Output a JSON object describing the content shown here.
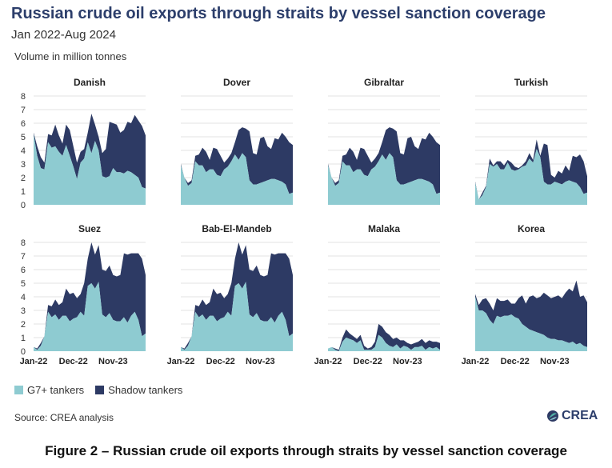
{
  "header": {
    "title": "Russian crude oil exports through straits by vessel sanction coverage",
    "subtitle": "Jan 2022-Aug 2024",
    "unit": "Volume in million tonnes"
  },
  "legend": [
    {
      "name": "G7+ tankers",
      "color": "#8ecbd1"
    },
    {
      "name": "Shadow tankers",
      "color": "#2d3a64"
    }
  ],
  "source": "Source: CREA analysis",
  "logo": "CREA",
  "caption": "Figure 2 – Russian crude oil exports through straits by vessel sanction coverage",
  "chart_data": {
    "type": "area",
    "stacked": true,
    "months": 32,
    "x_start": "Jan-22",
    "x_end": "Aug-24",
    "x_ticks": [
      {
        "index": 0,
        "label": "Jan-22"
      },
      {
        "index": 11,
        "label": "Dec-22"
      },
      {
        "index": 22,
        "label": "Nov-23"
      }
    ],
    "ylim": [
      0,
      8
    ],
    "y_ticks": [
      0,
      1,
      2,
      3,
      4,
      5,
      6,
      7,
      8
    ],
    "grid": true,
    "legend_position": "bottom-left",
    "colors": {
      "g7": "#8ecbd1",
      "shadow": "#2d3a64"
    },
    "panels": [
      {
        "name": "Danish",
        "g7": [
          5.2,
          3.6,
          2.7,
          2.6,
          4.6,
          4.2,
          4.3,
          3.9,
          3.6,
          4.4,
          3.6,
          2.8,
          1.9,
          3.1,
          3.4,
          4.6,
          3.8,
          4.7,
          4.0,
          2.1,
          2.0,
          2.1,
          2.7,
          2.4,
          2.4,
          2.3,
          2.5,
          2.4,
          2.2,
          2.0,
          1.3,
          1.2
        ],
        "total": [
          5.3,
          4.3,
          3.5,
          3.1,
          5.2,
          5.1,
          5.9,
          5.1,
          4.5,
          5.9,
          5.5,
          4.3,
          3.1,
          3.9,
          4.1,
          5.3,
          6.7,
          5.9,
          5.0,
          3.8,
          4.1,
          6.1,
          6.0,
          5.9,
          5.3,
          5.5,
          6.1,
          6.0,
          6.6,
          6.2,
          5.8,
          5.1
        ]
      },
      {
        "name": "Dover",
        "g7": [
          2.9,
          2.0,
          1.4,
          1.6,
          3.2,
          2.9,
          2.9,
          2.4,
          2.6,
          2.6,
          2.2,
          2.1,
          2.6,
          2.8,
          3.2,
          3.7,
          3.3,
          3.8,
          3.5,
          1.8,
          1.5,
          1.5,
          1.6,
          1.7,
          1.8,
          1.9,
          1.9,
          1.8,
          1.7,
          1.5,
          0.8,
          0.9
        ],
        "total": [
          3.0,
          2.0,
          1.6,
          1.8,
          3.6,
          3.7,
          4.2,
          3.9,
          3.3,
          4.2,
          4.1,
          3.6,
          3.1,
          3.4,
          3.8,
          4.6,
          5.5,
          5.7,
          5.6,
          5.4,
          3.8,
          3.7,
          4.9,
          5.0,
          4.3,
          4.1,
          4.9,
          4.8,
          5.3,
          5.0,
          4.6,
          4.4
        ]
      },
      {
        "name": "Gibraltar",
        "g7": [
          2.9,
          2.0,
          1.4,
          1.6,
          3.2,
          2.9,
          2.9,
          2.4,
          2.6,
          2.6,
          2.2,
          2.1,
          2.6,
          2.8,
          3.2,
          3.7,
          3.3,
          3.8,
          3.5,
          1.8,
          1.5,
          1.5,
          1.6,
          1.7,
          1.8,
          1.9,
          1.9,
          1.8,
          1.7,
          1.5,
          0.8,
          0.9
        ],
        "total": [
          3.0,
          2.0,
          1.6,
          1.8,
          3.6,
          3.7,
          4.2,
          3.9,
          3.3,
          4.2,
          4.1,
          3.6,
          3.1,
          3.4,
          3.8,
          4.6,
          5.5,
          5.7,
          5.6,
          5.4,
          3.8,
          3.7,
          4.9,
          5.0,
          4.3,
          4.1,
          4.9,
          4.8,
          5.3,
          5.0,
          4.6,
          4.4
        ]
      },
      {
        "name": "Turkish",
        "g7": [
          1.6,
          0.4,
          0.7,
          1.3,
          3.0,
          2.8,
          3.0,
          2.6,
          2.6,
          3.1,
          2.6,
          2.5,
          2.6,
          2.8,
          2.9,
          3.4,
          3.1,
          4.1,
          3.5,
          1.7,
          1.5,
          1.5,
          1.7,
          1.6,
          1.5,
          1.7,
          1.8,
          1.7,
          1.6,
          1.3,
          0.8,
          0.9
        ],
        "total": [
          1.7,
          0.4,
          0.9,
          1.4,
          3.4,
          2.9,
          3.2,
          3.2,
          2.9,
          3.3,
          3.1,
          2.8,
          2.7,
          2.9,
          3.2,
          3.8,
          3.3,
          4.8,
          3.6,
          4.5,
          4.4,
          2.2,
          2.0,
          2.5,
          2.3,
          2.9,
          2.5,
          3.6,
          3.5,
          3.7,
          3.2,
          2.1
        ]
      },
      {
        "name": "Suez",
        "g7": [
          0.3,
          0.1,
          0.4,
          1.1,
          2.9,
          2.5,
          2.7,
          2.3,
          2.6,
          2.6,
          2.2,
          2.4,
          2.5,
          2.9,
          2.6,
          4.8,
          5.0,
          4.6,
          5.1,
          2.7,
          2.5,
          2.8,
          2.3,
          2.2,
          2.2,
          2.5,
          2.1,
          2.6,
          2.9,
          2.3,
          1.1,
          1.3
        ],
        "total": [
          0.3,
          0.2,
          0.6,
          1.1,
          3.4,
          3.3,
          3.8,
          3.4,
          3.6,
          4.6,
          4.2,
          4.3,
          3.9,
          4.2,
          5.0,
          6.8,
          8.0,
          7.1,
          7.8,
          6.0,
          5.9,
          6.3,
          5.6,
          5.5,
          5.6,
          7.2,
          7.1,
          7.2,
          7.2,
          7.2,
          6.8,
          5.6
        ]
      },
      {
        "name": "Bab-El-Mandeb",
        "g7": [
          0.3,
          0.1,
          0.4,
          1.1,
          2.9,
          2.5,
          2.7,
          2.3,
          2.6,
          2.6,
          2.2,
          2.4,
          2.5,
          2.9,
          2.6,
          4.8,
          5.0,
          4.6,
          5.1,
          2.7,
          2.5,
          2.8,
          2.3,
          2.2,
          2.2,
          2.5,
          2.1,
          2.6,
          2.9,
          2.3,
          1.1,
          1.3
        ],
        "total": [
          0.3,
          0.2,
          0.6,
          1.1,
          3.4,
          3.3,
          3.8,
          3.4,
          3.6,
          4.6,
          4.2,
          4.3,
          3.9,
          4.2,
          5.0,
          6.8,
          8.0,
          7.1,
          7.8,
          6.0,
          5.9,
          6.3,
          5.6,
          5.5,
          5.6,
          7.2,
          7.1,
          7.2,
          7.2,
          7.2,
          6.8,
          5.6
        ]
      },
      {
        "name": "Malaka",
        "g7": [
          0.2,
          0.3,
          0.1,
          0.0,
          0.7,
          1.0,
          0.9,
          0.8,
          0.6,
          0.8,
          0.1,
          0.1,
          0.1,
          0.3,
          1.2,
          1.0,
          0.6,
          0.4,
          0.3,
          0.5,
          0.2,
          0.4,
          0.3,
          0.1,
          0.3,
          0.3,
          0.4,
          0.1,
          0.3,
          0.2,
          0.3,
          0.1
        ],
        "total": [
          0.2,
          0.3,
          0.2,
          0.1,
          1.0,
          1.6,
          1.3,
          1.1,
          0.9,
          1.2,
          0.4,
          0.2,
          0.3,
          0.7,
          2.0,
          1.8,
          1.4,
          1.2,
          0.9,
          1.0,
          0.8,
          0.8,
          0.6,
          0.5,
          0.6,
          0.7,
          0.9,
          0.6,
          0.8,
          0.7,
          0.7,
          0.6
        ]
      },
      {
        "name": "Korea",
        "g7": [
          4.0,
          3.0,
          3.0,
          2.8,
          2.3,
          2.0,
          2.6,
          2.5,
          2.6,
          2.6,
          2.7,
          2.5,
          2.4,
          2.0,
          1.8,
          1.6,
          1.5,
          1.4,
          1.3,
          1.2,
          1.0,
          0.9,
          0.9,
          0.8,
          0.8,
          0.7,
          0.6,
          0.7,
          0.5,
          0.6,
          0.4,
          0.3
        ],
        "total": [
          4.2,
          3.4,
          3.8,
          3.9,
          3.5,
          3.0,
          3.9,
          3.7,
          3.7,
          3.8,
          3.5,
          3.5,
          3.9,
          4.1,
          3.5,
          4.0,
          4.1,
          3.9,
          4.0,
          4.3,
          4.1,
          3.9,
          4.0,
          4.1,
          3.9,
          4.3,
          4.6,
          4.4,
          5.2,
          4.0,
          4.1,
          3.6
        ]
      }
    ]
  }
}
